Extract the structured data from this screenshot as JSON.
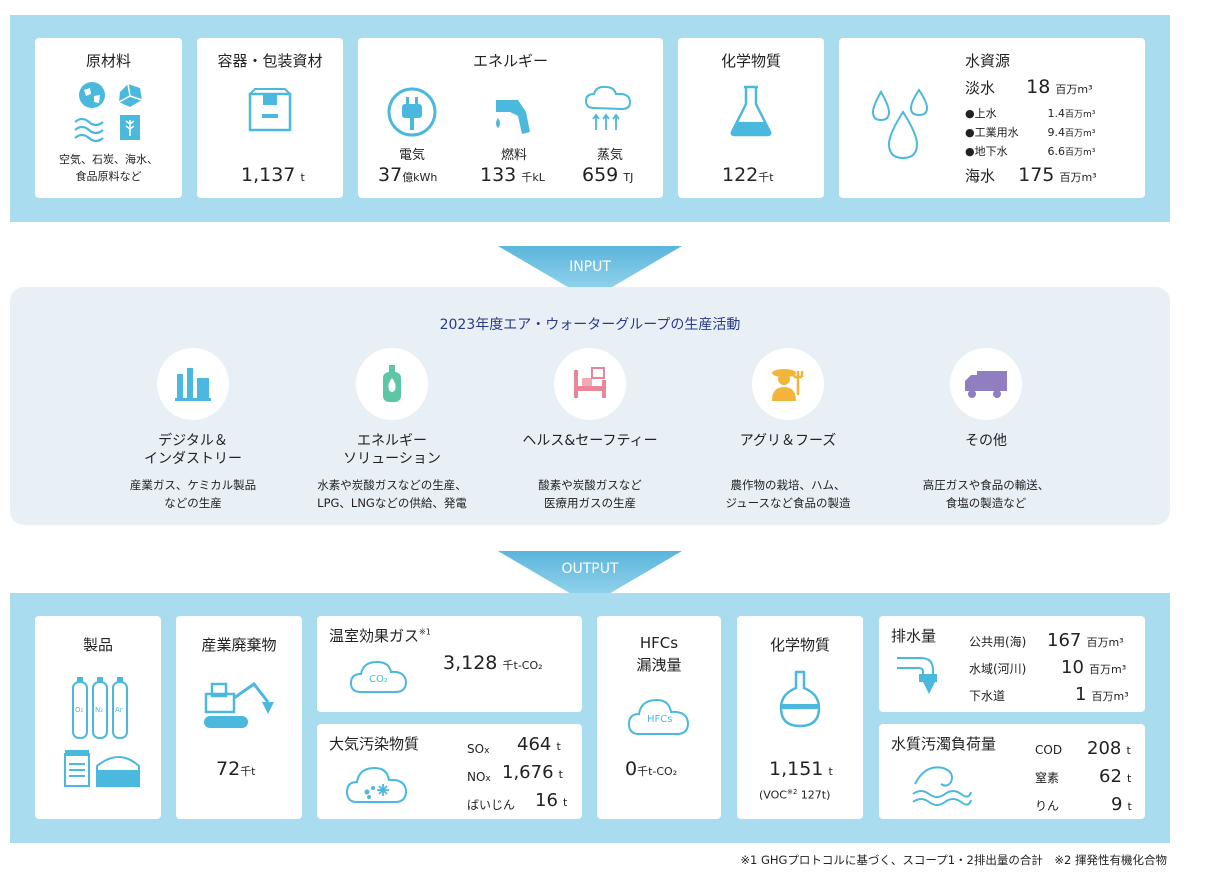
{
  "input": {
    "raw": {
      "title": "原材料",
      "desc1": "空気、石炭、海水、",
      "desc2": "食品原料など"
    },
    "packaging": {
      "title": "容器・包装資材",
      "value": "1,137",
      "unit": "t"
    },
    "energy": {
      "title": "エネルギー",
      "electricity": {
        "label": "電気",
        "value": "37",
        "unit": "億kWh"
      },
      "fuel": {
        "label": "燃料",
        "value": "133",
        "unit": "千kL"
      },
      "steam": {
        "label": "蒸気",
        "value": "659",
        "unit": "TJ"
      }
    },
    "chemicals": {
      "title": "化学物質",
      "value": "122",
      "unit": "千t"
    },
    "water": {
      "title": "水資源",
      "fresh_label": "淡水",
      "fresh_value": "18",
      "fresh_unit": "百万m³",
      "tap_label": "●上水",
      "tap_value": "1.4",
      "tap_unit": "百万m³",
      "industrial_label": "●工業用水",
      "industrial_value": "9.4",
      "industrial_unit": "百万m³",
      "ground_label": "●地下水",
      "ground_value": "6.6",
      "ground_unit": "百万m³",
      "sea_label": "海水",
      "sea_value": "175",
      "sea_unit": "百万m³"
    }
  },
  "arrows": {
    "input": "INPUT",
    "output": "OUTPUT"
  },
  "activities": {
    "title": "2023年度エア・ウォーターグループの生産活動",
    "items": [
      {
        "name1": "デジタル＆",
        "name2": "インダストリー",
        "desc1": "産業ガス、ケミカル製品",
        "desc2": "などの生産"
      },
      {
        "name1": "エネルギー",
        "name2": "ソリューション",
        "desc1": "水素や炭酸ガスなどの生産、",
        "desc2": "LPG、LNGなどの供給、発電"
      },
      {
        "name1": "ヘルス&セーフティー",
        "name2": "",
        "desc1": "酸素や炭酸ガスなど",
        "desc2": "医療用ガスの生産"
      },
      {
        "name1": "アグリ＆フーズ",
        "name2": "",
        "desc1": "農作物の栽培、ハム、",
        "desc2": "ジュースなど食品の製造"
      },
      {
        "name1": "その他",
        "name2": "",
        "desc1": "高圧ガスや食品の輸送、",
        "desc2": "食塩の製造など"
      }
    ]
  },
  "output": {
    "products": {
      "title": "製品",
      "o2": "O₂",
      "n2": "N₂",
      "ar": "Ar"
    },
    "waste": {
      "title": "産業廃棄物",
      "value": "72",
      "unit": "千t"
    },
    "ghg": {
      "title": "温室効果ガス",
      "note": "※1",
      "value": "3,128",
      "unit": "千t-CO₂",
      "icon_label": "CO₂"
    },
    "air": {
      "title": "大気汚染物質",
      "sox_label": "SO",
      "sox_sub": "x",
      "sox_value": "464",
      "sox_unit": "t",
      "nox_label": "NO",
      "nox_sub": "x",
      "nox_value": "1,676",
      "nox_unit": "t",
      "dust_label": "ばいじん",
      "dust_value": "16",
      "dust_unit": "t"
    },
    "hfcs": {
      "title1": "HFCs",
      "title2": "漏洩量",
      "icon_label": "HFCs",
      "value": "0",
      "unit": "千t-CO₂"
    },
    "chemicals": {
      "title": "化学物質",
      "value": "1,151",
      "unit": "t",
      "voc_label": "(VOC",
      "voc_note": "※2",
      "voc_value": "127t)"
    },
    "drainage": {
      "title": "排水量",
      "public_label": "公共用(海)",
      "public_value": "167",
      "public_unit": "百万m³",
      "river_label": "水域(河川)",
      "river_value": "10",
      "river_unit": "百万m³",
      "sewer_label": "下水道",
      "sewer_value": "1",
      "sewer_unit": "百万m³"
    },
    "pollution": {
      "title": "水質汚濁負荷量",
      "cod_label": "COD",
      "cod_value": "208",
      "cod_unit": "t",
      "n_label": "窒素",
      "n_value": "62",
      "n_unit": "t",
      "p_label": "りん",
      "p_value": "9",
      "p_unit": "t"
    }
  },
  "footnote": "※1 GHGプロトコルに基づく、スコープ1・2排出量の合計　※2 揮発性有機化合物",
  "colors": {
    "band": "#a9dcee",
    "icon_blue": "#4bb8dd",
    "panel": "#e9f0f5",
    "arrow": "#6fc6e3",
    "title_navy": "#2a3a8c"
  }
}
